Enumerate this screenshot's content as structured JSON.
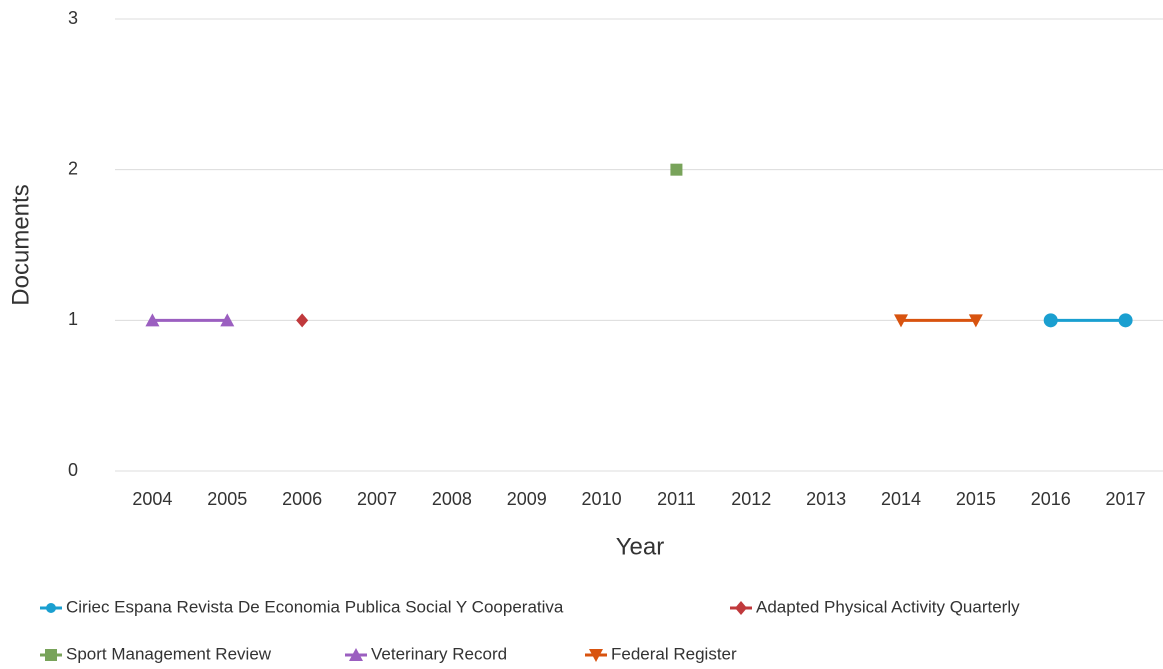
{
  "chart_data": {
    "type": "line",
    "x_label": "Year",
    "y_label": "Documents",
    "categories": [
      "2004",
      "2005",
      "2006",
      "2007",
      "2008",
      "2009",
      "2010",
      "2011",
      "2012",
      "2013",
      "2014",
      "2015",
      "2016",
      "2017"
    ],
    "series": [
      {
        "name": "Ciriec Espana Revista De Economia Publica Social Y Cooperativa",
        "color": "#1a9fd0",
        "marker": "circle",
        "values": [
          null,
          null,
          null,
          null,
          null,
          null,
          null,
          null,
          null,
          null,
          null,
          null,
          1,
          1
        ]
      },
      {
        "name": "Adapted Physical Activity Quarterly",
        "color": "#c0393c",
        "marker": "diamond",
        "values": [
          null,
          null,
          1,
          null,
          null,
          null,
          null,
          null,
          null,
          null,
          null,
          null,
          null,
          null
        ]
      },
      {
        "name": "Sport Management Review",
        "color": "#78a35a",
        "marker": "square",
        "values": [
          null,
          null,
          null,
          null,
          null,
          null,
          null,
          2,
          null,
          null,
          null,
          null,
          null,
          null
        ]
      },
      {
        "name": "Veterinary Record",
        "color": "#9b5fc0",
        "marker": "triangle",
        "values": [
          1,
          1,
          null,
          null,
          null,
          null,
          null,
          null,
          null,
          null,
          null,
          null,
          null,
          null
        ]
      },
      {
        "name": "Federal Register",
        "color": "#d8530f",
        "marker": "triangle-down",
        "values": [
          null,
          null,
          null,
          null,
          null,
          null,
          null,
          null,
          null,
          null,
          1,
          1,
          null,
          null
        ]
      }
    ],
    "ylim": [
      0,
      3
    ],
    "yticks": [
      0,
      1,
      2,
      3
    ],
    "grid": true
  }
}
